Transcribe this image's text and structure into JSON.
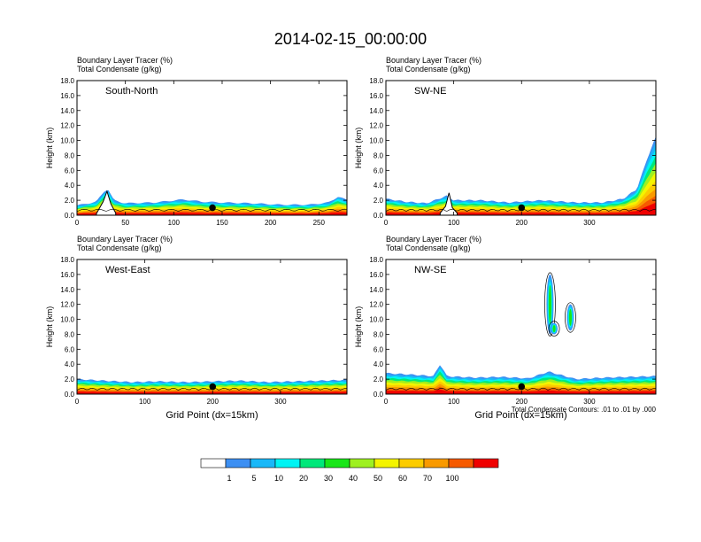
{
  "figure": {
    "title": "2014-02-15_00:00:00",
    "footnote": "Total Condensate Contours: .01 to .01 by .000",
    "xlabel": "Grid Point (dx=15km)"
  },
  "chart_data": [
    {
      "type": "heatmap",
      "panel_label": "South-North",
      "title_lines": [
        "Boundary Layer Tracer   (%)",
        "Total Condensate   (g/kg)"
      ],
      "ylabel": "Height (km)",
      "xlabel": "",
      "xlim": [
        0,
        279
      ],
      "ylim": [
        0,
        18
      ],
      "xticks": [
        0,
        50,
        100,
        150,
        200,
        250
      ],
      "yticks": [
        0,
        2,
        4,
        6,
        8,
        10,
        12,
        14,
        16,
        18
      ],
      "ytick_labels": [
        "0.0",
        "2.0",
        "4.0",
        "6.0",
        "8.0",
        "10.0",
        "12.0",
        "14.0",
        "16.0",
        "18.0"
      ],
      "marker_x": 140,
      "tracer_top_km": [
        [
          0,
          1.3
        ],
        [
          20,
          1.8
        ],
        [
          28,
          3.2
        ],
        [
          32,
          3.5
        ],
        [
          38,
          2.0
        ],
        [
          50,
          1.6
        ],
        [
          80,
          1.7
        ],
        [
          110,
          2.1
        ],
        [
          130,
          1.8
        ],
        [
          150,
          1.7
        ],
        [
          180,
          1.6
        ],
        [
          210,
          1.4
        ],
        [
          240,
          1.4
        ],
        [
          260,
          1.7
        ],
        [
          270,
          2.5
        ],
        [
          279,
          2.0
        ]
      ],
      "mountain": [
        [
          20,
          0.2
        ],
        [
          27,
          1.8
        ],
        [
          31,
          3.2
        ],
        [
          35,
          1.5
        ],
        [
          40,
          0.3
        ]
      ]
    },
    {
      "type": "heatmap",
      "panel_label": "SW-NE",
      "title_lines": [
        "Boundary Layer Tracer   (%)",
        "Total Condensate   (g/kg)"
      ],
      "ylabel": "Height (km)",
      "xlabel": "",
      "xlim": [
        0,
        398
      ],
      "ylim": [
        0,
        18
      ],
      "xticks": [
        0,
        100,
        200,
        300
      ],
      "yticks": [
        0,
        2,
        4,
        6,
        8,
        10,
        12,
        14,
        16,
        18
      ],
      "ytick_labels": [
        "0.0",
        "2.0",
        "4.0",
        "6.0",
        "8.0",
        "10.0",
        "12.0",
        "14.0",
        "16.0",
        "18.0"
      ],
      "marker_x": 200,
      "tracer_top_km": [
        [
          0,
          2.2
        ],
        [
          30,
          1.8
        ],
        [
          60,
          1.6
        ],
        [
          90,
          2.6
        ],
        [
          100,
          2.0
        ],
        [
          140,
          2.0
        ],
        [
          180,
          1.7
        ],
        [
          230,
          2.0
        ],
        [
          280,
          1.7
        ],
        [
          320,
          1.7
        ],
        [
          350,
          2.2
        ],
        [
          370,
          3.5
        ],
        [
          385,
          7.5
        ],
        [
          398,
          10.5
        ]
      ],
      "mountain": [
        [
          80,
          0.3
        ],
        [
          88,
          1.2
        ],
        [
          93,
          3.0
        ],
        [
          98,
          1.0
        ],
        [
          105,
          0.3
        ]
      ]
    },
    {
      "type": "heatmap",
      "panel_label": "West-East",
      "title_lines": [
        "Boundary Layer Tracer   (%)",
        "Total Condensate   (g/kg)"
      ],
      "ylabel": "Height (km)",
      "xlabel": "Grid Point (dx=15km)",
      "xlim": [
        0,
        398
      ],
      "ylim": [
        0,
        18
      ],
      "xticks": [
        0,
        100,
        200,
        300
      ],
      "yticks": [
        0,
        2,
        4,
        6,
        8,
        10,
        12,
        14,
        16,
        18
      ],
      "ytick_labels": [
        "0.0",
        "2.0",
        "4.0",
        "6.0",
        "8.0",
        "10.0",
        "12.0",
        "14.0",
        "16.0",
        "18.0"
      ],
      "marker_x": 200,
      "tracer_top_km": [
        [
          0,
          2.0
        ],
        [
          40,
          1.8
        ],
        [
          80,
          1.6
        ],
        [
          120,
          1.7
        ],
        [
          160,
          1.6
        ],
        [
          200,
          1.7
        ],
        [
          240,
          1.8
        ],
        [
          280,
          1.6
        ],
        [
          320,
          1.7
        ],
        [
          360,
          1.8
        ],
        [
          398,
          1.9
        ]
      ],
      "mountain": []
    },
    {
      "type": "heatmap",
      "panel_label": "NW-SE",
      "title_lines": [
        "Boundary Layer Tracer   (%)",
        "Total Condensate   (g/kg)"
      ],
      "ylabel": "Height (km)",
      "xlabel": "Grid Point (dx=15km)",
      "xlim": [
        0,
        398
      ],
      "ylim": [
        0,
        18
      ],
      "xticks": [
        0,
        100,
        200,
        300
      ],
      "yticks": [
        0,
        2,
        4,
        6,
        8,
        10,
        12,
        14,
        16,
        18
      ],
      "ytick_labels": [
        "0.0",
        "2.0",
        "4.0",
        "6.0",
        "8.0",
        "10.0",
        "12.0",
        "14.0",
        "16.0",
        "18.0"
      ],
      "marker_x": 200,
      "tracer_top_km": [
        [
          0,
          2.8
        ],
        [
          40,
          2.6
        ],
        [
          70,
          2.4
        ],
        [
          80,
          4.0
        ],
        [
          90,
          2.4
        ],
        [
          130,
          2.2
        ],
        [
          170,
          2.3
        ],
        [
          210,
          2.1
        ],
        [
          240,
          3.0
        ],
        [
          280,
          2.0
        ],
        [
          320,
          2.2
        ],
        [
          360,
          2.3
        ],
        [
          398,
          2.4
        ]
      ],
      "mountain": [],
      "plumes": [
        {
          "x": 242,
          "bottom_km": 8.0,
          "top_km": 16.0
        },
        {
          "x": 272,
          "bottom_km": 8.5,
          "top_km": 12.0
        },
        {
          "x": 248,
          "bottom_km": 8.0,
          "top_km": 9.5
        }
      ]
    }
  ],
  "colorbar": {
    "labels": [
      "1",
      "5",
      "10",
      "20",
      "30",
      "40",
      "50",
      "60",
      "70",
      "100"
    ],
    "colors": [
      "#ffffff",
      "#3d8ff2",
      "#19b8f8",
      "#00f4f4",
      "#00e87a",
      "#19e619",
      "#9ef020",
      "#f4f400",
      "#fccc00",
      "#f99a00",
      "#f65a00",
      "#ef0000"
    ]
  }
}
